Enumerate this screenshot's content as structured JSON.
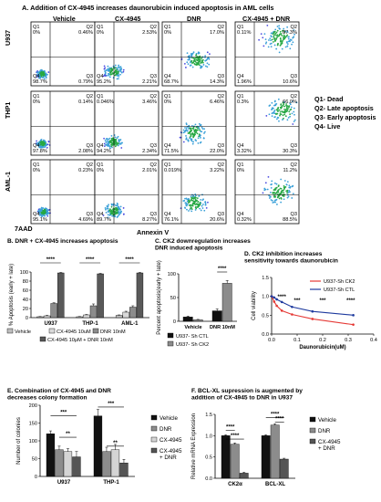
{
  "panelA": {
    "title": "A. Addition of  CX-4945 increases daunorubicin induced apoptosis in AML cells",
    "conditions": [
      "Vehicle",
      "CX-4945",
      "DNR",
      "CX-4945 + DNR"
    ],
    "cell_lines": [
      "U937",
      "THP1",
      "AML-1"
    ],
    "x_axis_label": "Annexin V",
    "y_axis_label": "7AAD",
    "key": [
      "Q1- Dead",
      "Q2- Late apoptosis",
      "Q3- Early apoptosis",
      "Q4- Live"
    ],
    "quadrants": [
      [
        {
          "q1": "Q1\n0%",
          "q2": "Q2\n0.46%",
          "q3": "Q3\n0.79%",
          "q4": "Q4\n98.7%"
        },
        {
          "q1": "Q1\n0%",
          "q2": "Q2\n2.53%",
          "q3": "Q3\n2.21%",
          "q4": "Q4\n95.2%"
        },
        {
          "q1": "Q1\n0%",
          "q2": "Q2\n17.0%",
          "q3": "Q3\n14.3%",
          "q4": "Q4\n68.7%"
        },
        {
          "q1": "Q1\n0.11%",
          "q2": "Q2\n87.3%",
          "q3": "Q3\n10.6%",
          "q4": "Q4\n1.96%"
        }
      ],
      [
        {
          "q1": "Q1\n0%",
          "q2": "Q2\n0.14%",
          "q3": "Q3\n2.08%",
          "q4": "Q4\n97.8%"
        },
        {
          "q1": "Q1\n0.046%",
          "q2": "Q2\n3.46%",
          "q3": "Q3\n2.34%",
          "q4": "Q4\n94.2%"
        },
        {
          "q1": "Q1\n0%",
          "q2": "Q2\n6.46%",
          "q3": "Q3\n22.0%",
          "q4": "Q4\n71.5%"
        },
        {
          "q1": "Q1\n0.3%",
          "q2": "Q2\n66.0%",
          "q3": "Q3\n30.3%",
          "q4": "Q4\n3.32%"
        }
      ],
      [
        {
          "q1": "Q1\n0%",
          "q2": "Q2\n0.23%",
          "q3": "Q3\n4.69%",
          "q4": "Q4\n95.1%"
        },
        {
          "q1": "Q1\n0%",
          "q2": "Q2\n2.01%",
          "q3": "Q3\n8.27%",
          "q4": "Q4\n89.7%"
        },
        {
          "q1": "Q1\n0.019%",
          "q2": "Q2\n3.22%",
          "q3": "Q3\n20.6%",
          "q4": "Q4\n76.1%"
        },
        {
          "q1": "Q1\n0%",
          "q2": "Q2\n11.2%",
          "q3": "Q3\n88.5%",
          "q4": "Q4\n0.32%"
        }
      ]
    ]
  },
  "chart_data": [
    {
      "id": "B",
      "type": "bar",
      "title": "B. DNR + CX-4945 increases apoptosis",
      "ylabel": "% Apoptosis (early + late)",
      "ylim": [
        0,
        100
      ],
      "yticks": [
        0,
        20,
        40,
        60,
        80,
        100
      ],
      "categories": [
        "U937",
        "THP-1",
        "AML-1"
      ],
      "series": [
        {
          "name": "Vehicle",
          "values": [
            2,
            2,
            5
          ],
          "errors": [
            0.5,
            0.5,
            1
          ]
        },
        {
          "name": "CX-4945 10uM",
          "values": [
            4,
            6,
            12
          ],
          "errors": [
            1,
            1,
            2
          ]
        },
        {
          "name": "DNR 10nM",
          "values": [
            31,
            26,
            23
          ],
          "errors": [
            1.5,
            4,
            3
          ]
        },
        {
          "name": "CX-4945 10μM + DNR 10nM",
          "values": [
            98,
            96,
            98
          ],
          "errors": [
            1,
            1,
            1
          ]
        }
      ],
      "significance": [
        "****",
        "****",
        "****"
      ],
      "colors": [
        "#bdbdbd",
        "#d9d9d9",
        "#8c8c8c",
        "#595959"
      ]
    },
    {
      "id": "C",
      "type": "bar",
      "title": "C. CK2 downregulation increases\nDNR induced apoptosis",
      "ylabel": "Percent apoptosis(early + late)",
      "ylim": [
        0,
        100
      ],
      "yticks": [
        0,
        50,
        100
      ],
      "categories": [
        "Vehicle",
        "DNR 10nM"
      ],
      "series": [
        {
          "name": "U937- Sh CTL",
          "values": [
            9,
            22
          ],
          "errors": [
            2,
            4
          ]
        },
        {
          "name": "U937- Sh CK2",
          "values": [
            3,
            80
          ],
          "errors": [
            1,
            6
          ]
        }
      ],
      "significance": [
        "",
        "****"
      ],
      "colors": [
        "#111111",
        "#8c8c8c"
      ]
    },
    {
      "id": "D",
      "type": "line",
      "title": "D. CK2 inhibition increases\nsensitivity towards daunorubicin",
      "xlabel": "Daunorubicin(uM)",
      "ylabel": "Cell viability",
      "xlim": [
        0,
        0.4
      ],
      "ylim": [
        0,
        1.5
      ],
      "xticks": [
        0.0,
        0.1,
        0.2,
        0.3,
        0.4
      ],
      "yticks": [
        0.0,
        0.5,
        1.0,
        1.5
      ],
      "series": [
        {
          "name": "U937-Sh CK2",
          "color": "#e53935",
          "x": [
            0,
            0.01,
            0.02,
            0.04,
            0.08,
            0.16,
            0.32
          ],
          "y": [
            1.0,
            0.86,
            0.75,
            0.62,
            0.52,
            0.4,
            0.25
          ]
        },
        {
          "name": "U937-Sh CTL",
          "color": "#1e3a9e",
          "x": [
            0,
            0.01,
            0.02,
            0.04,
            0.08,
            0.16,
            0.32
          ],
          "y": [
            1.0,
            0.97,
            0.92,
            0.85,
            0.72,
            0.6,
            0.5
          ]
        }
      ],
      "significance": [
        {
          "x": 0.04,
          "label": "****"
        },
        {
          "x": 0.1,
          "label": "***"
        },
        {
          "x": 0.2,
          "label": "***"
        },
        {
          "x": 0.31,
          "label": "****"
        }
      ]
    },
    {
      "id": "E",
      "type": "bar",
      "title": "E. Combination of CX-4945 and DNR\ndecreases colony formation",
      "ylabel": "Number of colonies",
      "ylim": [
        0,
        200
      ],
      "yticks": [
        0,
        50,
        100,
        150,
        200
      ],
      "categories": [
        "U937",
        "THP-1"
      ],
      "series": [
        {
          "name": "Vehicle",
          "values": [
            120,
            170
          ],
          "errors": [
            8,
            18
          ]
        },
        {
          "name": "DNR",
          "values": [
            75,
            70
          ],
          "errors": [
            10,
            12
          ]
        },
        {
          "name": "CX-4945",
          "values": [
            70,
            75
          ],
          "errors": [
            8,
            15
          ]
        },
        {
          "name": "CX-4945\n+ DNR",
          "values": [
            55,
            38
          ],
          "errors": [
            15,
            10
          ]
        }
      ],
      "significance": [
        {
          "label": "***",
          "level": 170
        },
        {
          "label": "**",
          "level": 110
        },
        {
          "label": "***",
          "level": 195
        },
        {
          "label": "**",
          "level": 85
        }
      ],
      "colors": [
        "#111111",
        "#8c8c8c",
        "#d4d4d4",
        "#555555"
      ]
    },
    {
      "id": "F",
      "type": "bar",
      "title": "F. BCL-XL supression is augmented by\naddition of CX-4945 to DNR in U937",
      "ylabel": "Relative mRNA Expression",
      "ylim": [
        0,
        1.5
      ],
      "yticks": [
        0.0,
        0.5,
        1.0,
        1.5
      ],
      "categories": [
        "CK2α",
        "BCL-XL"
      ],
      "series": [
        {
          "name": "Vehicle",
          "values": [
            1.0,
            1.0
          ],
          "errors": [
            0.02,
            0.02
          ]
        },
        {
          "name": "DNR",
          "values": [
            0.8,
            1.25
          ],
          "errors": [
            0.03,
            0.03
          ]
        },
        {
          "name": "CX-4945\n+ DNR",
          "values": [
            0.12,
            0.45
          ],
          "errors": [
            0.02,
            0.02
          ]
        }
      ],
      "significance": [
        "****",
        "****",
        "****",
        "****"
      ],
      "colors": [
        "#111111",
        "#8c8c8c",
        "#555555"
      ]
    }
  ]
}
